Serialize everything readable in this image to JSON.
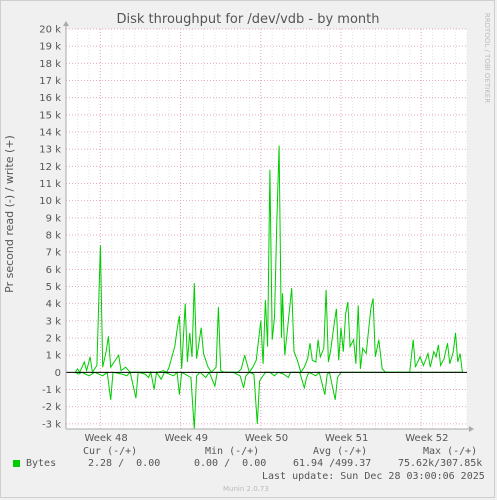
{
  "chart_data": {
    "type": "line",
    "title": "Disk throughput for /dev/vdb - by month",
    "ylabel": "Pr second read (-) / write (+)",
    "side_label": "RRDTOOL / TOBI OETIKER",
    "ylim": [
      -3300,
      20000
    ],
    "y_ticks": [
      {
        "v": 20000,
        "label": "20 k"
      },
      {
        "v": 19000,
        "label": "19 k"
      },
      {
        "v": 18000,
        "label": "18 k"
      },
      {
        "v": 17000,
        "label": "17 k"
      },
      {
        "v": 16000,
        "label": "16 k"
      },
      {
        "v": 15000,
        "label": "15 k"
      },
      {
        "v": 14000,
        "label": "14 k"
      },
      {
        "v": 13000,
        "label": "13 k"
      },
      {
        "v": 12000,
        "label": "12 k"
      },
      {
        "v": 11000,
        "label": "11 k"
      },
      {
        "v": 10000,
        "label": "10 k"
      },
      {
        "v": 9000,
        "label": "9 k"
      },
      {
        "v": 8000,
        "label": "8 k"
      },
      {
        "v": 7000,
        "label": "7 k"
      },
      {
        "v": 6000,
        "label": "6 k"
      },
      {
        "v": 5000,
        "label": "5 k"
      },
      {
        "v": 4000,
        "label": "4 k"
      },
      {
        "v": 3000,
        "label": "3 k"
      },
      {
        "v": 2000,
        "label": "2 k"
      },
      {
        "v": 1000,
        "label": "1 k"
      },
      {
        "v": 0,
        "label": "0"
      },
      {
        "v": -1000,
        "label": "-1 k"
      },
      {
        "v": -2000,
        "label": "-2 k"
      },
      {
        "v": -3000,
        "label": "-3 k"
      }
    ],
    "x_range": [
      0,
      35
    ],
    "x_ticks": [
      {
        "x": 3.5,
        "label": "Week 48"
      },
      {
        "x": 10.5,
        "label": "Week 49"
      },
      {
        "x": 17.5,
        "label": "Week 50"
      },
      {
        "x": 24.5,
        "label": "Week 51"
      },
      {
        "x": 31.5,
        "label": "Week 52"
      }
    ],
    "week_boundaries": [
      3,
      10,
      17,
      24,
      31
    ],
    "series": [
      {
        "name": "Bytes",
        "color": "#00cc00",
        "write": [
          [
            0.8,
            0
          ],
          [
            1.0,
            200
          ],
          [
            1.2,
            0
          ],
          [
            1.6,
            600
          ],
          [
            1.8,
            100
          ],
          [
            2.1,
            900
          ],
          [
            2.3,
            0
          ],
          [
            2.7,
            400
          ],
          [
            3.0,
            7400
          ],
          [
            3.2,
            300
          ],
          [
            3.5,
            1200
          ],
          [
            3.7,
            2100
          ],
          [
            3.9,
            300
          ],
          [
            4.2,
            600
          ],
          [
            4.6,
            1000
          ],
          [
            4.8,
            100
          ],
          [
            5.2,
            300
          ],
          [
            5.6,
            0
          ],
          [
            6.0,
            0
          ],
          [
            6.5,
            0
          ],
          [
            7.0,
            0
          ],
          [
            7.6,
            0
          ],
          [
            8.0,
            0
          ],
          [
            8.5,
            100
          ],
          [
            8.8,
            0
          ],
          [
            9.0,
            300
          ],
          [
            9.2,
            800
          ],
          [
            9.5,
            1500
          ],
          [
            9.7,
            2500
          ],
          [
            9.9,
            3300
          ],
          [
            10.1,
            200
          ],
          [
            10.4,
            4000
          ],
          [
            10.6,
            600
          ],
          [
            10.8,
            2300
          ],
          [
            11.0,
            900
          ],
          [
            11.2,
            5200
          ],
          [
            11.4,
            800
          ],
          [
            11.8,
            2600
          ],
          [
            12.0,
            1100
          ],
          [
            12.4,
            300
          ],
          [
            12.7,
            0
          ],
          [
            13.1,
            300
          ],
          [
            13.3,
            3800
          ],
          [
            13.5,
            100
          ],
          [
            13.8,
            0
          ],
          [
            14.5,
            0
          ],
          [
            15.0,
            0
          ],
          [
            15.3,
            200
          ],
          [
            15.6,
            1000
          ],
          [
            15.8,
            500
          ],
          [
            16.0,
            0
          ],
          [
            16.3,
            300
          ],
          [
            16.6,
            700
          ],
          [
            17.0,
            3000
          ],
          [
            17.2,
            500
          ],
          [
            17.4,
            4200
          ],
          [
            17.6,
            1500
          ],
          [
            17.8,
            11800
          ],
          [
            18.0,
            1900
          ],
          [
            18.2,
            3200
          ],
          [
            18.4,
            8700
          ],
          [
            18.6,
            13200
          ],
          [
            18.8,
            2000
          ],
          [
            18.9,
            4600
          ],
          [
            19.1,
            1000
          ],
          [
            19.3,
            2300
          ],
          [
            19.5,
            3600
          ],
          [
            19.7,
            4900
          ],
          [
            19.9,
            1200
          ],
          [
            20.2,
            700
          ],
          [
            20.5,
            0
          ],
          [
            20.8,
            300
          ],
          [
            21.1,
            800
          ],
          [
            21.3,
            1700
          ],
          [
            21.5,
            700
          ],
          [
            21.8,
            600
          ],
          [
            22.0,
            1900
          ],
          [
            22.2,
            900
          ],
          [
            22.5,
            1400
          ],
          [
            22.7,
            4800
          ],
          [
            22.9,
            600
          ],
          [
            23.1,
            1300
          ],
          [
            23.4,
            2800
          ],
          [
            23.6,
            3700
          ],
          [
            23.8,
            700
          ],
          [
            24.0,
            2600
          ],
          [
            24.2,
            1200
          ],
          [
            24.4,
            3400
          ],
          [
            24.6,
            4100
          ],
          [
            24.8,
            1500
          ],
          [
            25.1,
            1900
          ],
          [
            25.3,
            500
          ],
          [
            25.5,
            3900
          ],
          [
            25.7,
            200
          ],
          [
            25.9,
            1400
          ],
          [
            26.2,
            1100
          ],
          [
            26.4,
            2400
          ],
          [
            26.6,
            3700
          ],
          [
            26.8,
            4300
          ],
          [
            27.0,
            900
          ],
          [
            27.3,
            1900
          ],
          [
            27.6,
            200
          ],
          [
            27.9,
            0
          ],
          [
            28.3,
            0
          ],
          [
            28.7,
            0
          ],
          [
            29.2,
            0
          ],
          [
            29.6,
            0
          ],
          [
            30.0,
            0
          ],
          [
            30.3,
            1900
          ],
          [
            30.5,
            300
          ],
          [
            30.9,
            900
          ],
          [
            31.2,
            400
          ],
          [
            31.6,
            1100
          ],
          [
            31.8,
            300
          ],
          [
            32.1,
            1200
          ],
          [
            32.3,
            900
          ],
          [
            32.5,
            1600
          ],
          [
            32.7,
            400
          ],
          [
            33.0,
            800
          ],
          [
            33.3,
            1700
          ],
          [
            33.5,
            500
          ],
          [
            33.8,
            1200
          ],
          [
            34.0,
            2300
          ],
          [
            34.2,
            600
          ],
          [
            34.4,
            1100
          ],
          [
            34.6,
            0
          ]
        ],
        "read": [
          [
            0.8,
            0
          ],
          [
            1.1,
            -100
          ],
          [
            1.4,
            0
          ],
          [
            2.0,
            -200
          ],
          [
            2.5,
            0
          ],
          [
            3.2,
            -200
          ],
          [
            3.6,
            0
          ],
          [
            3.9,
            -1600
          ],
          [
            4.1,
            0
          ],
          [
            4.9,
            -100
          ],
          [
            5.3,
            -200
          ],
          [
            5.6,
            0
          ],
          [
            6.1,
            -1500
          ],
          [
            6.3,
            0
          ],
          [
            6.9,
            -100
          ],
          [
            7.2,
            -300
          ],
          [
            7.4,
            0
          ],
          [
            7.7,
            -1000
          ],
          [
            7.9,
            0
          ],
          [
            8.3,
            -400
          ],
          [
            8.6,
            0
          ],
          [
            9.4,
            -200
          ],
          [
            9.7,
            0
          ],
          [
            9.9,
            -1300
          ],
          [
            10.1,
            0
          ],
          [
            10.9,
            -300
          ],
          [
            11.2,
            -3300
          ],
          [
            11.4,
            -200
          ],
          [
            11.7,
            0
          ],
          [
            12.2,
            -300
          ],
          [
            12.5,
            0
          ],
          [
            13.0,
            -800
          ],
          [
            13.2,
            0
          ],
          [
            14.0,
            0
          ],
          [
            14.6,
            0
          ],
          [
            15.2,
            -200
          ],
          [
            15.5,
            -900
          ],
          [
            15.7,
            -200
          ],
          [
            16.0,
            0
          ],
          [
            16.4,
            -100
          ],
          [
            16.7,
            -3000
          ],
          [
            16.9,
            -500
          ],
          [
            17.1,
            -300
          ],
          [
            17.4,
            0
          ],
          [
            17.8,
            0
          ],
          [
            18.2,
            -200
          ],
          [
            18.5,
            0
          ],
          [
            19.0,
            -100
          ],
          [
            19.4,
            -300
          ],
          [
            19.6,
            0
          ],
          [
            20.4,
            0
          ],
          [
            20.8,
            -900
          ],
          [
            21.0,
            -300
          ],
          [
            21.2,
            0
          ],
          [
            21.8,
            -200
          ],
          [
            22.1,
            0
          ],
          [
            22.6,
            -1300
          ],
          [
            22.8,
            -100
          ],
          [
            23.0,
            0
          ],
          [
            23.5,
            -1600
          ],
          [
            23.7,
            -300
          ],
          [
            24.0,
            0
          ],
          [
            24.6,
            0
          ],
          [
            25.2,
            0
          ],
          [
            26.0,
            0
          ],
          [
            27.0,
            0
          ],
          [
            28.0,
            0
          ],
          [
            29.0,
            0
          ],
          [
            30.0,
            0
          ],
          [
            31.0,
            0
          ],
          [
            32.0,
            0
          ],
          [
            33.0,
            0
          ],
          [
            34.0,
            0
          ],
          [
            34.6,
            0
          ]
        ]
      }
    ]
  },
  "legend": {
    "header": {
      "cur": "Cur (-/+)",
      "min": "Min (-/+)",
      "avg": "Avg (-/+)",
      "max": "Max (-/+)"
    },
    "rows": [
      {
        "label": "Bytes",
        "color": "#00cc00",
        "cur": "2.28 /  0.00",
        "min": "0.00 /  0.00",
        "avg": "61.94 /499.37",
        "max": "75.62k/307.85k"
      }
    ]
  },
  "last_update": "Last update: Sun Dec 28 03:00:06 2025",
  "footer": "Munin 2.0.73"
}
